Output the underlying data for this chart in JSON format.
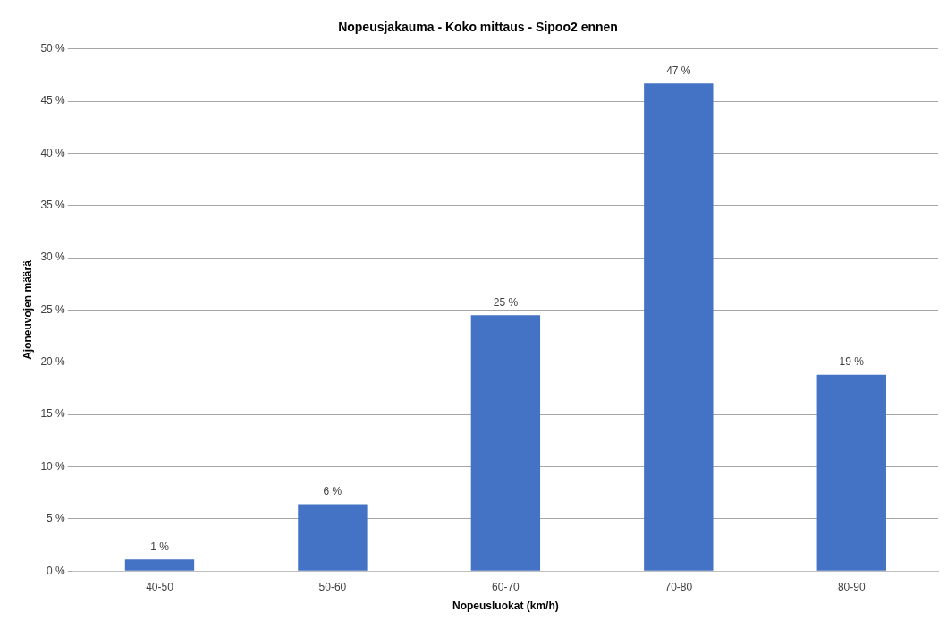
{
  "chart_data": {
    "type": "bar",
    "title": "Nopeusjakauma - Koko mittaus - Sipoo2 ennen",
    "xlabel": "Nopeusluokat (km/h)",
    "ylabel": "Ajoneuvojen määrä",
    "categories": [
      "40-50",
      "50-60",
      "60-70",
      "70-80",
      "80-90"
    ],
    "values": [
      1.1,
      6.4,
      24.5,
      46.7,
      18.8
    ],
    "value_labels": [
      "1 %",
      "6 %",
      "25 %",
      "47 %",
      "19 %"
    ],
    "color": "#4472c4",
    "ylim": [
      0,
      50
    ],
    "yticks": [
      {
        "value": 0,
        "label": "0 %"
      },
      {
        "value": 5,
        "label": "5 %"
      },
      {
        "value": 10,
        "label": "10 %"
      },
      {
        "value": 15,
        "label": "15 %"
      },
      {
        "value": 20,
        "label": "20 %"
      },
      {
        "value": 25,
        "label": "25 %"
      },
      {
        "value": 30,
        "label": "30 %"
      },
      {
        "value": 35,
        "label": "35 %"
      },
      {
        "value": 40,
        "label": "40 %"
      },
      {
        "value": 45,
        "label": "45 %"
      },
      {
        "value": 50,
        "label": "50 %"
      }
    ],
    "grid": "y",
    "legend": false
  }
}
